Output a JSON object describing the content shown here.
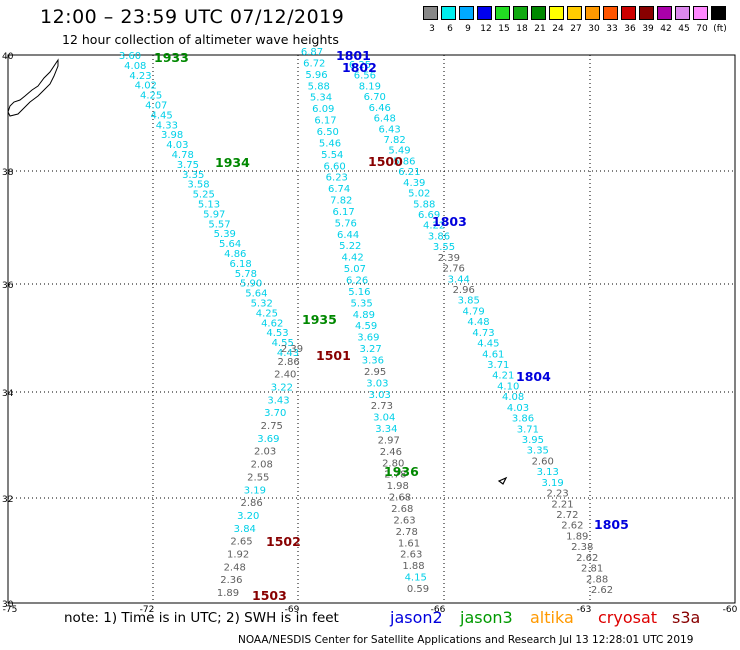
{
  "title": "12:00 – 23:59 UTC 07/12/2019",
  "subtitle": "12 hour collection of altimeter wave heights",
  "legend": {
    "labels": [
      "3",
      "6",
      "9",
      "12",
      "15",
      "18",
      "21",
      "24",
      "27",
      "30",
      "33",
      "36",
      "39",
      "42",
      "45",
      "70",
      "(ft)"
    ],
    "colors": [
      "#888888",
      "#00eeee",
      "#00aaff",
      "#0000ee",
      "#22dd22",
      "#11aa11",
      "#008800",
      "#ffff00",
      "#ffcc00",
      "#ff9900",
      "#ff5500",
      "#cc0000",
      "#880000",
      "#aa00aa",
      "#dd88ee",
      "#ff88ff",
      "#000000"
    ]
  },
  "axes": {
    "x_ticks": [
      "-75",
      "-72",
      "-69",
      "-66",
      "-63",
      "-60"
    ],
    "y_ticks": [
      "40",
      "38",
      "36",
      "34",
      "32",
      "30"
    ]
  },
  "colors": {
    "cyan": "#00d0e8",
    "gray": "#606060",
    "blue": "#0000dd",
    "green": "#008800",
    "darkred": "#880000"
  },
  "tracks": [
    {
      "id": "t1933",
      "color": "cyan",
      "values": [
        "3.60",
        "4.08",
        "4.23",
        "4.02",
        "4.25",
        "4.07",
        "4.45",
        "4.33",
        "3.98",
        "4.03",
        "4.78",
        "3.75",
        "3.35",
        "3.58",
        "5.25",
        "5.13",
        "5.97",
        "5.57",
        "5.39",
        "5.64",
        "4.86",
        "6.18",
        "5.78",
        "5.90",
        "5.64",
        "5.32",
        "4.25",
        "4.62",
        "4.53",
        "4.55",
        "4.43"
      ]
    },
    {
      "id": "t1501",
      "color": "cyan",
      "values": [
        "6.87",
        "6.72",
        "5.96",
        "5.88",
        "5.34",
        "6.09",
        "6.17",
        "6.50",
        "5.46",
        "5.54",
        "6.60",
        "6.23",
        "6.74",
        "7.82",
        "6.17",
        "5.76",
        "6.44",
        "5.22",
        "4.42",
        "5.07",
        "6.26",
        "5.16",
        "5.35",
        "4.89",
        "4.59",
        "3.69",
        "3.27",
        "3.36",
        "2.95",
        "3.03",
        "3.03",
        "2.73",
        "3.04",
        "3.34",
        "2.97",
        "2.46",
        "2.80",
        "2.78",
        "1.98",
        "2.68",
        "2.68",
        "2.63",
        "2.78",
        "1.61",
        "2.63",
        "1.88",
        "4.15",
        "0.59"
      ]
    },
    {
      "id": "t1801",
      "color": "cyan",
      "values": [
        "6.25",
        "6.56",
        "8.19",
        "6.70",
        "6.46",
        "6.48",
        "6.43",
        "7.82",
        "5.49",
        "5.86",
        "6.21",
        "4.39",
        "5.02",
        "5.88",
        "6.69",
        "4.22",
        "3.86",
        "3.55",
        "2.39",
        "2.76",
        "3.44",
        "2.96",
        "3.85",
        "4.79",
        "4.48",
        "4.73",
        "4.45",
        "4.61",
        "3.71",
        "4.21",
        "4.10",
        "4.08",
        "4.03",
        "3.86",
        "3.71",
        "3.95",
        "3.35",
        "2.60",
        "3.13",
        "3.19",
        "2.23",
        "2.21",
        "2.72",
        "2.62",
        "1.89",
        "2.38",
        "2.62",
        "2.81",
        "2.88",
        "2.62"
      ]
    },
    {
      "id": "t1935",
      "color": "cyan",
      "values": [
        "2.39",
        "2.86",
        "2.40",
        "3.22",
        "3.43",
        "3.70",
        "2.75",
        "3.69",
        "2.03",
        "2.08",
        "2.55",
        "3.19",
        "2.86",
        "3.20",
        "3.84",
        "2.65",
        "1.92",
        "2.48",
        "2.36",
        "1.89"
      ]
    }
  ],
  "pass_labels": [
    {
      "text": "1933",
      "color": "green"
    },
    {
      "text": "1934",
      "color": "green"
    },
    {
      "text": "1935",
      "color": "green"
    },
    {
      "text": "1936",
      "color": "green"
    },
    {
      "text": "1801",
      "color": "blue"
    },
    {
      "text": "1802",
      "color": "blue"
    },
    {
      "text": "1803",
      "color": "blue"
    },
    {
      "text": "1804",
      "color": "blue"
    },
    {
      "text": "1805",
      "color": "blue"
    },
    {
      "text": "1500",
      "color": "darkred"
    },
    {
      "text": "1501",
      "color": "darkred"
    },
    {
      "text": "1502",
      "color": "darkred"
    },
    {
      "text": "1503",
      "color": "darkred"
    }
  ],
  "note": "note: 1) Time is in UTC; 2) SWH is in feet",
  "satellites": [
    {
      "name": "jason2",
      "color": "#0000dd"
    },
    {
      "name": "jason3",
      "color": "#009900"
    },
    {
      "name": "altika",
      "color": "#ff9900"
    },
    {
      "name": "cryosat",
      "color": "#dd0000"
    },
    {
      "name": "s3a",
      "color": "#880000"
    }
  ],
  "credit": "NOAA/NESDIS Center for Satellite Applications and Research   Jul 13 12:28:01 UTC 2019"
}
